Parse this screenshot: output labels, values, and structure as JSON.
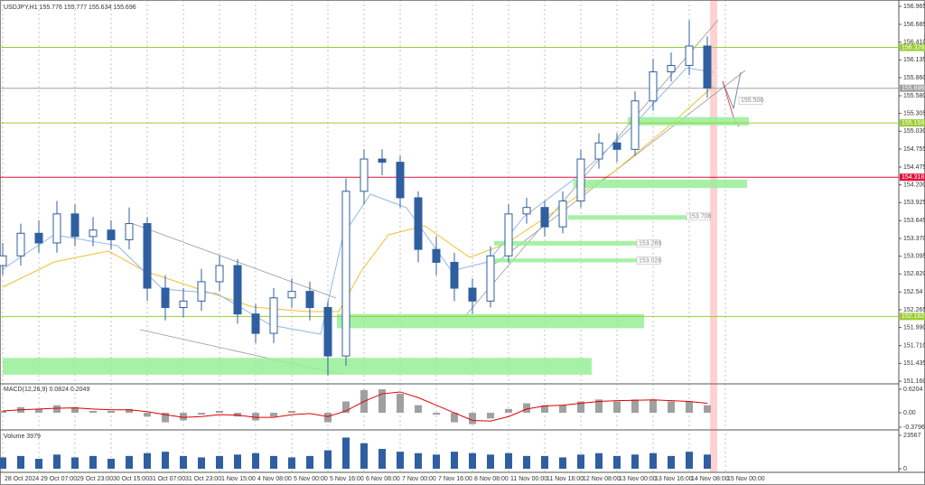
{
  "chart_data": [
    {
      "type": "candlestick",
      "title": "USDJPY,H1 155.776 155.777 155.634 155.696",
      "color": "#2f5fa0",
      "time_labels": [
        "28 Oct 2024",
        "29 Oct 07:00",
        "29 Oct 23:00",
        "30 Oct 15:00",
        "31 Oct 07:00",
        "31 Oct 23:00",
        "1 Nov 15:00",
        "4 Nov 08:00",
        "5 Nov 00:00",
        "5 Nov 16:00",
        "6 Nov 08:00",
        "7 Nov 00:00",
        "7 Nov 16:00",
        "8 Nov 08:00",
        "11 Nov 00:00",
        "11 Nov 16:00",
        "12 Nov 08:00",
        "13 Nov 00:00",
        "13 Nov 16:00",
        "14 Nov 08:00",
        "15 Nov 00:00"
      ],
      "open": [
        152.95,
        153.1,
        153.45,
        153.3,
        153.75,
        153.4,
        153.5,
        153.35,
        153.6,
        152.6,
        152.3,
        152.4,
        152.7,
        152.95,
        152.2,
        151.9,
        152.45,
        152.55,
        152.3,
        151.55,
        154.1,
        154.6,
        154.55,
        154.0,
        153.2,
        153.0,
        152.6,
        152.4,
        153.1,
        153.75,
        153.85,
        153.55,
        153.95,
        154.6,
        154.85,
        154.75,
        155.5,
        155.95,
        156.05,
        156.35
      ],
      "high": [
        153.3,
        153.6,
        153.65,
        153.95,
        153.9,
        153.7,
        153.65,
        153.85,
        153.7,
        152.8,
        152.6,
        152.9,
        153.1,
        153.05,
        152.35,
        152.6,
        152.75,
        152.7,
        152.4,
        154.3,
        154.75,
        154.75,
        154.65,
        154.1,
        153.4,
        153.15,
        152.75,
        153.25,
        153.9,
        154.0,
        153.95,
        154.1,
        154.75,
        155.0,
        155.0,
        155.65,
        156.15,
        156.25,
        156.75,
        156.5
      ],
      "low": [
        152.8,
        152.95,
        153.15,
        153.15,
        153.25,
        153.25,
        153.2,
        153.2,
        152.4,
        152.1,
        152.15,
        152.25,
        152.55,
        152.05,
        151.75,
        151.75,
        152.3,
        152.1,
        151.25,
        151.4,
        153.9,
        154.35,
        153.85,
        153.0,
        152.8,
        152.4,
        152.2,
        152.3,
        153.0,
        153.6,
        153.4,
        153.45,
        153.85,
        154.45,
        154.55,
        154.65,
        155.35,
        155.8,
        155.9,
        155.55
      ],
      "close": [
        153.1,
        153.45,
        153.3,
        153.75,
        153.4,
        153.5,
        153.35,
        153.6,
        152.6,
        152.3,
        152.4,
        152.7,
        152.95,
        152.2,
        151.9,
        152.45,
        152.55,
        152.3,
        151.55,
        154.1,
        154.6,
        154.55,
        154.0,
        153.2,
        153.0,
        152.6,
        152.4,
        153.1,
        153.75,
        153.85,
        153.55,
        153.95,
        154.6,
        154.85,
        154.75,
        155.5,
        155.95,
        156.05,
        156.35,
        155.7
      ],
      "ylim": [
        151.16,
        156.965
      ],
      "yticks": [
        156.965,
        156.685,
        {
          "value": 156.41,
          "label": "156.410"
        },
        156.135,
        {
          "value": 155.86,
          "label": "155.860"
        },
        {
          "value": 155.58,
          "label": "155.580"
        },
        155.305,
        {
          "value": 155.03,
          "label": "155.030"
        },
        154.755,
        154.475,
        {
          "value": 154.2,
          "label": "154.200"
        },
        153.925,
        153.645,
        {
          "value": 153.37,
          "label": "153.370"
        },
        153.095,
        {
          "value": 152.82,
          "label": "152.820"
        },
        152.54,
        152.265,
        {
          "value": 151.99,
          "label": "151.990"
        },
        {
          "value": 151.71,
          "label": "151.710"
        },
        151.435,
        {
          "value": 151.16,
          "label": "151.160"
        }
      ],
      "levels": [
        {
          "value": 156.328,
          "color": "#9acd32"
        },
        {
          "value": 155.696,
          "color": "#a0a0a0"
        },
        {
          "value": 155.159,
          "color": "#9acd32"
        },
        {
          "value": 154.318,
          "color": "#e0103a"
        },
        {
          "value": 152.162,
          "color": "#9acd32"
        }
      ],
      "zones": [
        {
          "low": 155.12,
          "high": 155.25,
          "from": 34.6,
          "to": 41.3
        },
        {
          "low": 154.15,
          "high": 154.28,
          "from": 31.6,
          "to": 41.2
        },
        {
          "low": 153.66,
          "high": 153.73,
          "from": 31.3,
          "to": 38.3
        },
        {
          "low": 153.26,
          "high": 153.33,
          "from": 27.2,
          "to": 35.5
        },
        {
          "low": 153.0,
          "high": 153.06,
          "from": 27.2,
          "to": 35.5
        },
        {
          "low": 151.98,
          "high": 152.2,
          "from": 18.5,
          "to": 35.5
        },
        {
          "low": 151.26,
          "high": 151.52,
          "from": 0,
          "to": 32.6
        }
      ],
      "zone_color": "#98ee98",
      "annotations": [
        155.506,
        153.708,
        153.289,
        153.028
      ]
    },
    {
      "type": "macd",
      "title": "MACD(12,26,9) 0.0824 0.2049",
      "color": "#a0a0a0",
      "signal_color": "#e00000",
      "values": [
        0.05,
        0.15,
        0.1,
        0.2,
        0.15,
        0.05,
        0.05,
        0.1,
        -0.1,
        -0.25,
        -0.2,
        -0.05,
        0.05,
        -0.1,
        -0.2,
        -0.1,
        0.05,
        0.0,
        -0.25,
        0.3,
        0.6,
        0.62,
        0.5,
        0.2,
        -0.05,
        -0.25,
        -0.3,
        -0.15,
        0.1,
        0.25,
        0.2,
        0.2,
        0.3,
        0.35,
        0.3,
        0.35,
        0.35,
        0.3,
        0.3,
        0.2
      ],
      "signal": [
        0.05,
        0.08,
        0.1,
        0.12,
        0.13,
        0.1,
        0.08,
        0.08,
        0.03,
        -0.05,
        -0.12,
        -0.1,
        -0.05,
        -0.06,
        -0.12,
        -0.12,
        -0.05,
        -0.02,
        -0.1,
        0.05,
        0.3,
        0.5,
        0.55,
        0.4,
        0.2,
        0.0,
        -0.2,
        -0.22,
        -0.1,
        0.1,
        0.18,
        0.2,
        0.25,
        0.3,
        0.32,
        0.33,
        0.34,
        0.32,
        0.3,
        0.25
      ],
      "ylim": [
        -0.3796,
        0.6204
      ],
      "yticks": [
        0.6204,
        {
          "value": 0,
          "label": "0.00"
        },
        -0.3796
      ]
    },
    {
      "type": "volume",
      "title": "Volume 3979",
      "color": "#2f5fa0",
      "values": [
        8000,
        9000,
        7000,
        10000,
        8000,
        9000,
        7000,
        9000,
        11000,
        12000,
        9000,
        8000,
        9000,
        10000,
        11000,
        9000,
        8000,
        9000,
        13000,
        22000,
        18000,
        14000,
        12000,
        11000,
        10000,
        12000,
        11000,
        10000,
        11000,
        9000,
        9000,
        8000,
        10000,
        11000,
        9000,
        10000,
        11000,
        9000,
        12000,
        10000
      ],
      "ylim": [
        0,
        23567
      ],
      "yticks": [
        23567,
        0
      ]
    }
  ]
}
